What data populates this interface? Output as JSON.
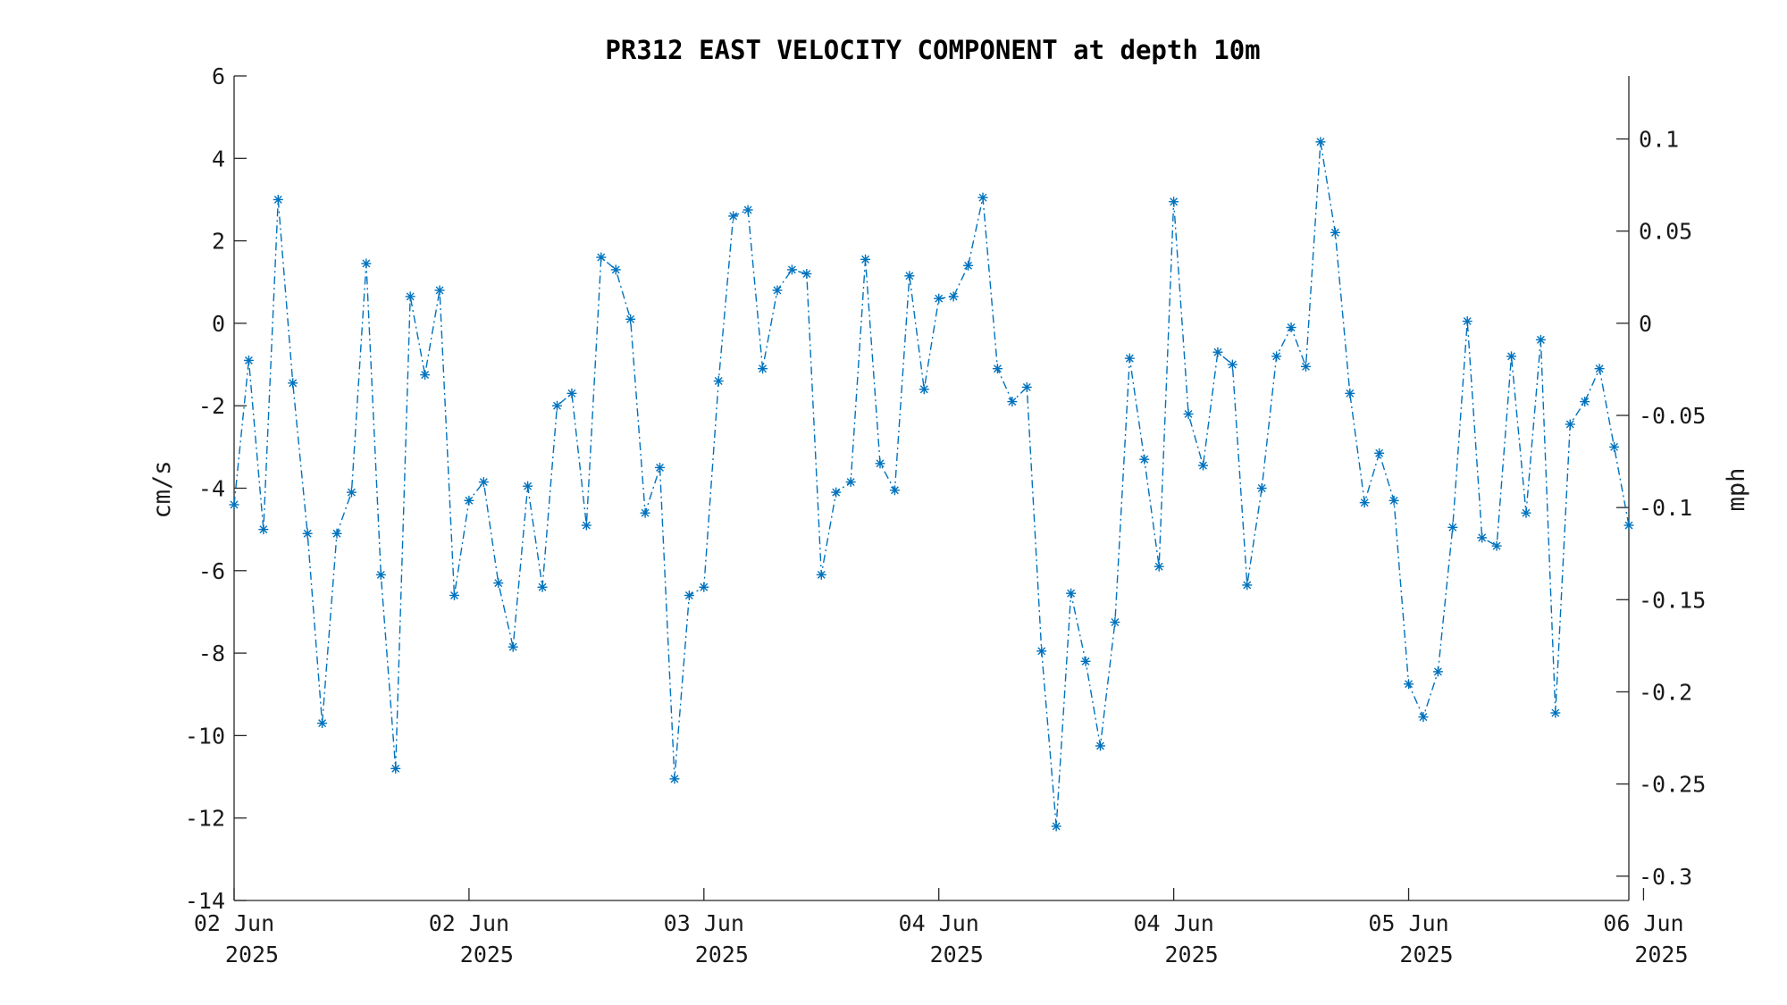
{
  "chart_data": {
    "type": "line",
    "title": "PR312 EAST VELOCITY COMPONENT at depth 10m",
    "ylabel": "cm/s",
    "ylabel_right": "mph",
    "ylim": [
      -14,
      6
    ],
    "yticks": [
      6,
      4,
      2,
      0,
      -2,
      -4,
      -6,
      -8,
      -10,
      -12,
      -14
    ],
    "ylim_right": [
      -0.3132,
      0.1342
    ],
    "yticks_right": [
      0.1,
      0.05,
      0,
      -0.05,
      -0.1,
      -0.15,
      -0.2,
      -0.25,
      -0.3
    ],
    "xlim": [
      0,
      95
    ],
    "xticks": [
      {
        "x": 0,
        "line1": "02 Jun",
        "line2": "2025"
      },
      {
        "x": 16,
        "line1": "02 Jun",
        "line2": "2025"
      },
      {
        "x": 32,
        "line1": "03 Jun",
        "line2": "2025"
      },
      {
        "x": 48,
        "line1": "04 Jun",
        "line2": "2025"
      },
      {
        "x": 64,
        "line1": "04 Jun",
        "line2": "2025"
      },
      {
        "x": 80,
        "line1": "05 Jun",
        "line2": "2025"
      },
      {
        "x": 96,
        "line1": "06 Jun",
        "line2": "2025"
      }
    ],
    "grid": false,
    "series": [
      {
        "line_style": "dash-dot",
        "marker": "asterisk",
        "color": "#0072BD",
        "x": [
          0,
          1,
          2,
          3,
          4,
          5,
          6,
          7,
          8,
          9,
          10,
          11,
          12,
          13,
          14,
          15,
          16,
          17,
          18,
          19,
          20,
          21,
          22,
          23,
          24,
          25,
          26,
          27,
          28,
          29,
          30,
          31,
          32,
          33,
          34,
          35,
          36,
          37,
          38,
          39,
          40,
          41,
          42,
          43,
          44,
          45,
          46,
          47,
          48,
          49,
          50,
          51,
          52,
          53,
          54,
          55,
          56,
          57,
          58,
          59,
          60,
          61,
          62,
          63,
          64,
          65,
          66,
          67,
          68,
          69,
          70,
          71,
          72,
          73,
          74,
          75,
          76,
          77,
          78,
          79,
          80,
          81,
          82,
          83,
          84,
          85,
          86,
          87,
          88,
          89,
          90,
          91,
          92,
          93,
          94,
          95
        ],
        "values": [
          -4.4,
          -0.9,
          -5.0,
          3.0,
          -1.45,
          -5.1,
          -9.7,
          -5.1,
          -4.1,
          1.45,
          -6.1,
          -10.8,
          0.65,
          -1.25,
          0.8,
          -6.6,
          -4.3,
          -3.85,
          -6.3,
          -7.85,
          -3.95,
          -6.4,
          -2.0,
          -1.7,
          -4.9,
          1.6,
          1.3,
          0.1,
          -4.6,
          -3.5,
          -11.05,
          -6.6,
          -6.4,
          -1.4,
          2.6,
          2.75,
          -1.1,
          0.8,
          1.3,
          1.2,
          -6.1,
          -4.1,
          -3.85,
          1.55,
          -3.4,
          -4.05,
          1.15,
          -1.6,
          0.6,
          0.65,
          1.4,
          3.05,
          -1.1,
          -1.9,
          -1.55,
          -7.95,
          -12.2,
          -6.55,
          -8.2,
          -10.25,
          -7.25,
          -0.85,
          -3.3,
          -5.9,
          2.95,
          -2.2,
          -3.45,
          -0.7,
          -1.0,
          -6.35,
          -4.0,
          -0.8,
          -0.1,
          -1.05,
          4.4,
          2.2,
          -1.7,
          -4.35,
          -3.15,
          -4.3,
          -8.75,
          -9.55,
          -8.45,
          -4.95,
          0.05,
          -5.2,
          -5.4,
          -0.8,
          -4.6,
          -0.4,
          -9.45,
          -2.45,
          -1.9,
          -1.1,
          -3.0,
          -4.9
        ]
      }
    ]
  }
}
